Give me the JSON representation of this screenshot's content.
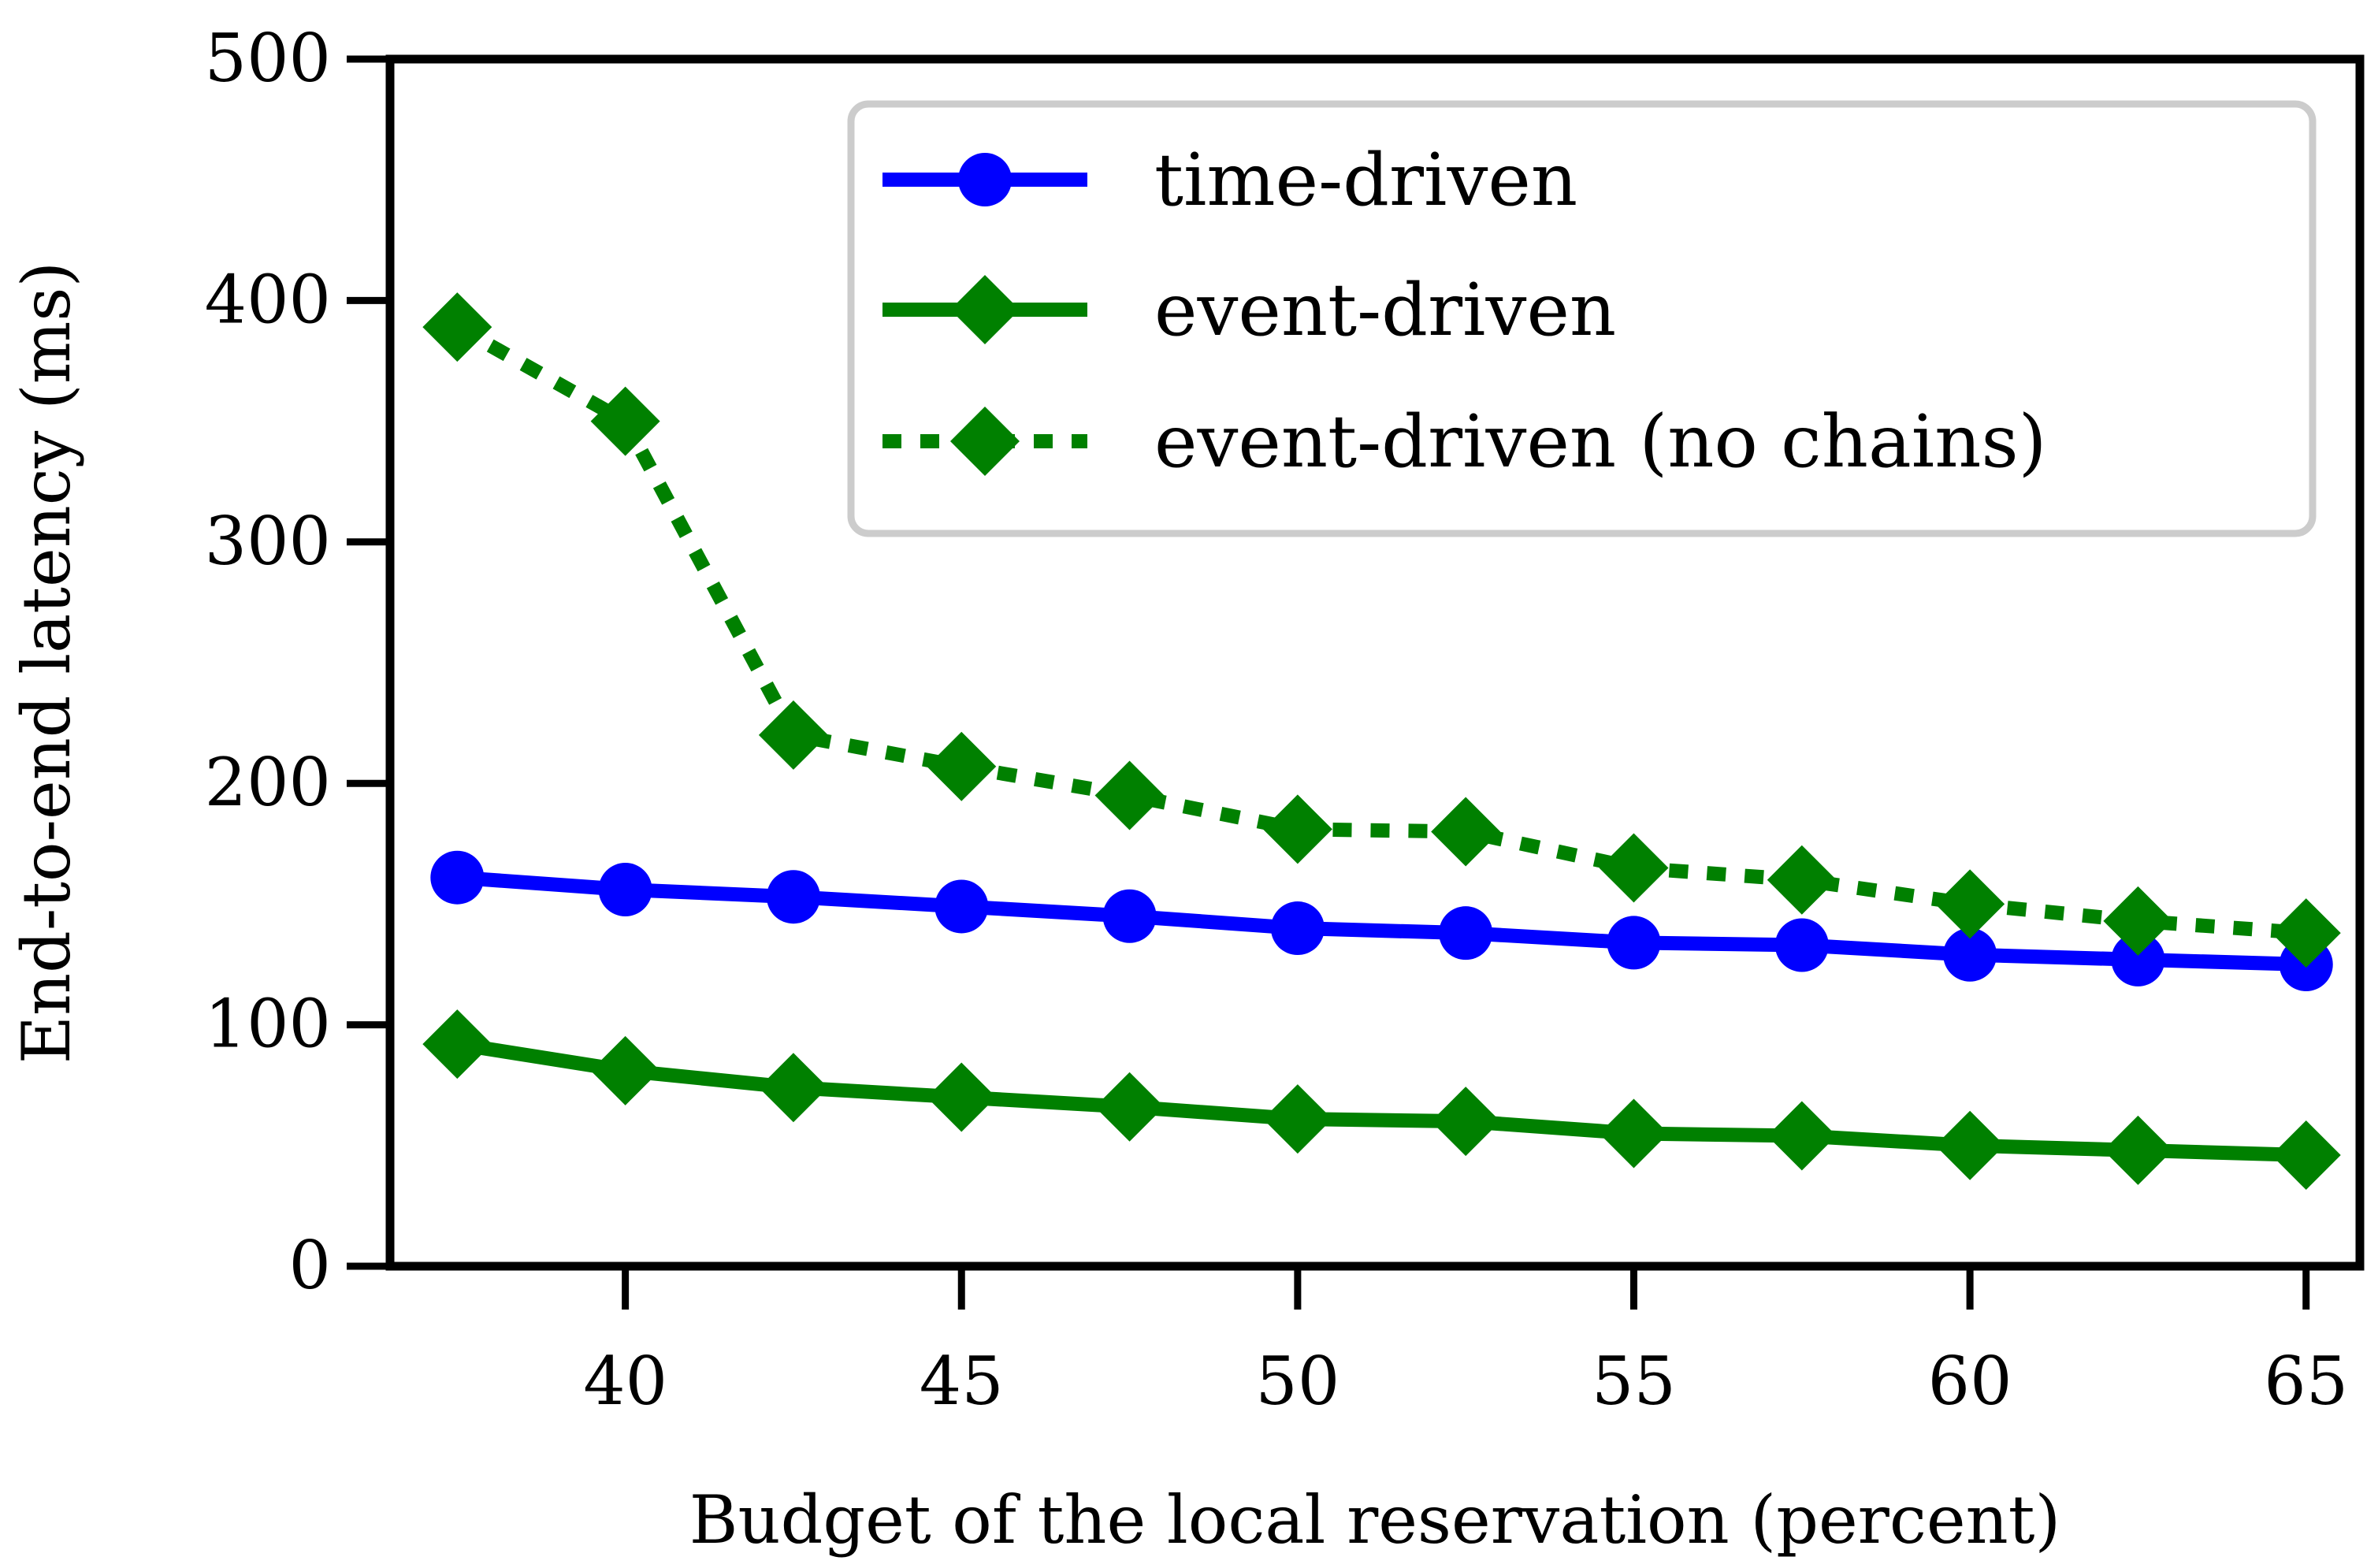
{
  "chart_data": {
    "type": "line",
    "title": "",
    "xlabel": "Budget of the local reservation (percent)",
    "ylabel": "End-to-end latency (ms)",
    "xlim": [
      36.5,
      65.8
    ],
    "ylim": [
      0,
      500
    ],
    "xticks": [
      40,
      45,
      50,
      55,
      60,
      65
    ],
    "yticks": [
      0,
      100,
      200,
      300,
      400,
      500
    ],
    "grid": false,
    "legend_position": "top-right",
    "x": [
      37.5,
      40,
      42.5,
      45,
      47.5,
      50,
      52.5,
      55,
      57.5,
      60,
      62.5,
      65
    ],
    "series": [
      {
        "name": "time-driven",
        "color": "#0000ff",
        "line_style": "solid",
        "marker": "circle",
        "values": [
          161,
          156,
          153,
          149,
          145,
          140,
          138,
          134,
          133,
          129,
          127,
          125
        ]
      },
      {
        "name": "event-driven",
        "color": "#008000",
        "line_style": "solid",
        "marker": "diamond",
        "values": [
          92,
          81,
          74,
          70,
          66,
          61,
          60,
          55,
          54,
          50,
          48,
          46
        ]
      },
      {
        "name": "event-driven (no chains)",
        "color": "#008000",
        "line_style": "dotted",
        "marker": "diamond",
        "values": [
          389,
          350,
          220,
          207,
          195,
          181,
          180,
          165,
          160,
          150,
          143,
          138
        ]
      }
    ]
  }
}
